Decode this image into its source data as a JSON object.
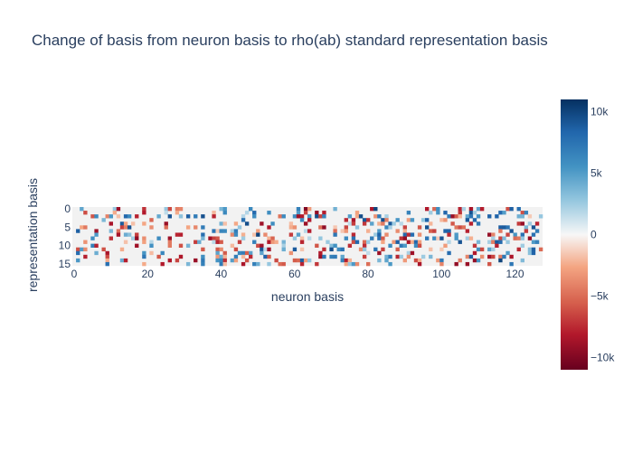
{
  "chart_data": {
    "type": "heatmap",
    "title": "Change of basis from neuron basis to rho(ab) standard representation basis",
    "xlabel": "neuron basis",
    "ylabel": "representation basis",
    "x_count": 128,
    "y_count": 16,
    "xlim": [
      0,
      127
    ],
    "ylim": [
      0,
      15
    ],
    "y_reversed": true,
    "x_ticks": [
      0,
      20,
      40,
      60,
      80,
      100,
      120
    ],
    "y_ticks": [
      0,
      5,
      10,
      15
    ],
    "zlim": [
      -11000,
      11000
    ],
    "colorscale": "RdBu",
    "colorbar_ticks": [
      {
        "value": 10000,
        "label": "10k"
      },
      {
        "value": 5000,
        "label": "5k"
      },
      {
        "value": 0,
        "label": "0"
      },
      {
        "value": -5000,
        "label": "−5k"
      },
      {
        "value": -10000,
        "label": "−10k"
      }
    ],
    "grid": false,
    "active_columns": [
      1,
      2,
      3,
      5,
      6,
      8,
      9,
      10,
      11,
      12,
      13,
      14,
      15,
      16,
      17,
      19,
      21,
      23,
      24,
      25,
      26,
      28,
      29,
      31,
      33,
      34,
      35,
      37,
      38,
      39,
      40,
      41,
      43,
      44,
      45,
      46,
      47,
      48,
      49,
      50,
      51,
      52,
      53,
      54,
      55,
      56,
      57,
      59,
      60,
      61,
      62,
      63,
      64,
      66,
      67,
      68,
      69,
      70,
      71,
      72,
      73,
      74,
      75,
      76,
      77,
      78,
      79,
      80,
      81,
      82,
      83,
      84,
      85,
      86,
      87,
      88,
      89,
      90,
      91,
      92,
      93,
      94,
      95,
      96,
      97,
      98,
      99,
      100,
      101,
      102,
      103,
      104,
      105,
      106,
      107,
      108,
      109,
      110,
      111,
      112,
      113,
      114,
      115,
      116,
      117,
      118,
      119,
      120,
      121,
      122,
      123,
      124,
      125,
      126,
      127
    ],
    "values_note_strong": [
      {
        "col": 12,
        "row": 0,
        "value": -9000
      },
      {
        "col": 63,
        "row": 0,
        "value": -10000
      },
      {
        "col": 82,
        "row": 0,
        "value": 10000
      },
      {
        "col": 51,
        "row": 4,
        "value": -9000
      },
      {
        "col": 50,
        "row": 7,
        "value": 10000
      },
      {
        "col": 92,
        "row": 12,
        "value": -9000
      },
      {
        "col": 116,
        "row": 14,
        "value": 10000
      }
    ]
  }
}
